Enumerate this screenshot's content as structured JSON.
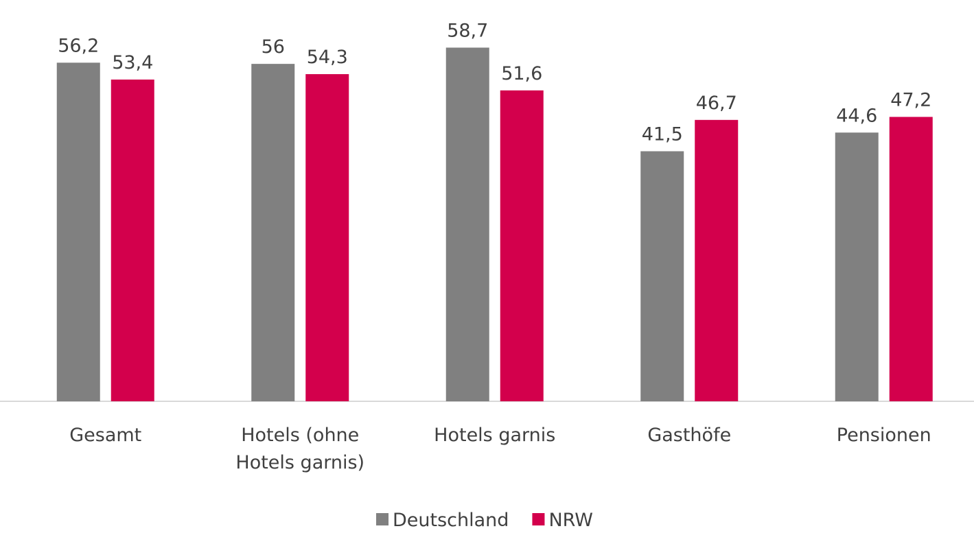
{
  "chart_data": {
    "type": "bar",
    "categories": [
      "Gesamt",
      "Hotels (ohne Hotels garnis)",
      "Hotels garnis",
      "Gasthöfe",
      "Pensionen"
    ],
    "series": [
      {
        "name": "Deutschland",
        "color": "#808080",
        "values": [
          56.2,
          56,
          58.7,
          41.5,
          44.6
        ],
        "value_labels": [
          "56,2",
          "56",
          "58,7",
          "41,5",
          "44,6"
        ]
      },
      {
        "name": "NRW",
        "color": "#d3004c",
        "values": [
          53.4,
          54.3,
          51.6,
          46.7,
          47.2
        ],
        "value_labels": [
          "53,4",
          "54,3",
          "51,6",
          "46,7",
          "47,2"
        ]
      }
    ],
    "ylim": [
      0,
      60
    ]
  }
}
